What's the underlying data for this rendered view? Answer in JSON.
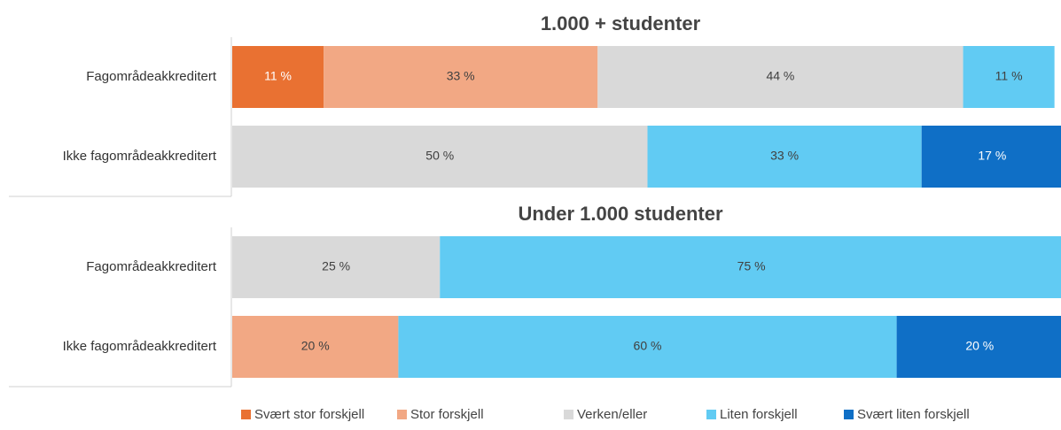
{
  "chart_data": {
    "type": "bar",
    "orientation": "horizontal",
    "stacked": true,
    "xlim": [
      0,
      100
    ],
    "panels": [
      {
        "title": "1.000 + studenter",
        "categories": [
          "Fagområdeakkreditert",
          "Ikke fagområdeakkreditert"
        ]
      },
      {
        "title": "Under 1.000 studenter",
        "categories": [
          "Fagområdeakkreditert",
          "Ikke fagområdeakkreditert"
        ]
      }
    ],
    "series": [
      {
        "name": "Svært stor forskjell",
        "color": "#e97132",
        "label_color": "#ffffff",
        "values": [
          [
            11,
            null
          ],
          [
            null,
            null
          ]
        ],
        "value_labels": [
          [
            "11 %",
            null
          ],
          [
            null,
            null
          ]
        ]
      },
      {
        "name": "Stor forskjell",
        "color": "#f2a884",
        "label_color": "#404040",
        "values": [
          [
            33,
            null
          ],
          [
            null,
            20
          ]
        ],
        "value_labels": [
          [
            "33 %",
            null
          ],
          [
            null,
            "20 %"
          ]
        ]
      },
      {
        "name": "Verken/eller",
        "color": "#d9d9d9",
        "label_color": "#404040",
        "values": [
          [
            44,
            50
          ],
          [
            25,
            null
          ]
        ],
        "value_labels": [
          [
            "44 %",
            "50 %"
          ],
          [
            "25 %",
            null
          ]
        ]
      },
      {
        "name": "Liten forskjell",
        "color": "#61cbf3",
        "label_color": "#404040",
        "values": [
          [
            11,
            33
          ],
          [
            75,
            60
          ]
        ],
        "value_labels": [
          [
            "11 %",
            "33 %"
          ],
          [
            "75 %",
            "60 %"
          ]
        ]
      },
      {
        "name": "Svært liten forskjell",
        "color": "#0f6fc6",
        "label_color": "#ffffff",
        "values": [
          [
            null,
            17
          ],
          [
            null,
            20
          ]
        ],
        "value_labels": [
          [
            null,
            "17 %"
          ],
          [
            null,
            "20 %"
          ]
        ]
      }
    ]
  }
}
